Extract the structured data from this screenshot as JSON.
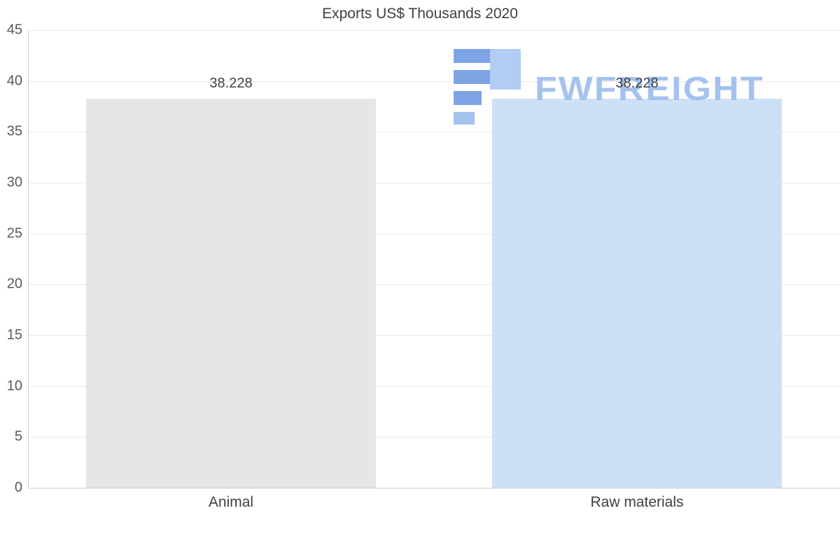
{
  "chart_data": {
    "type": "bar",
    "title": "Exports US$ Thousands 2020",
    "categories": [
      "Animal",
      "Raw materials"
    ],
    "values": [
      38.228,
      38.228
    ],
    "value_labels": [
      "38.228",
      "38.228"
    ],
    "bar_colors": [
      "#e6e6e6",
      "#cde1f6"
    ],
    "ylim": [
      0,
      45
    ],
    "yticks": [
      45,
      40,
      35,
      30,
      25,
      20,
      15,
      10,
      5,
      0
    ],
    "xlabel": "",
    "ylabel": "",
    "grid": true,
    "legend": "none"
  },
  "watermark": {
    "text": "FWFREIGHT",
    "color": "#a5c2ee",
    "logo_dark_blue": "#7ea4e6",
    "logo_light_blue": "#b3ccf4"
  }
}
